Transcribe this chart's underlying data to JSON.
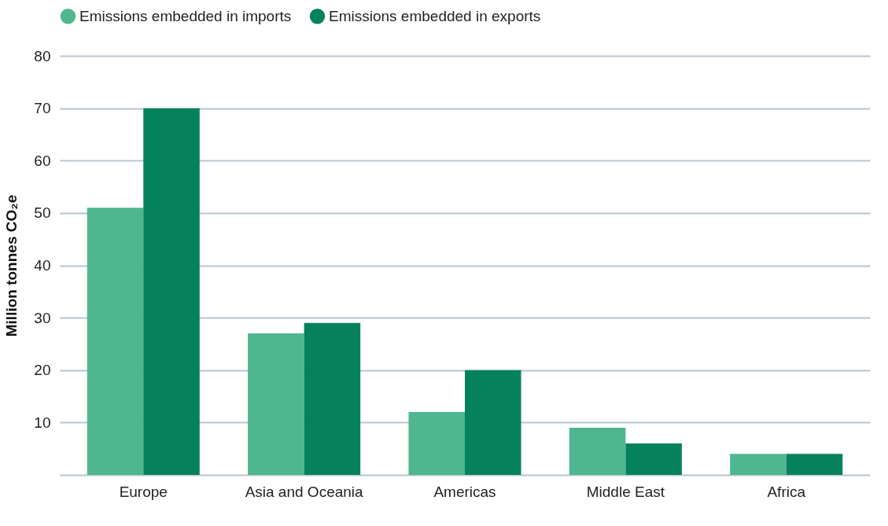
{
  "chart_data": {
    "type": "bar",
    "ylabel": "Million tonnes CO₂e",
    "categories": [
      "Europe",
      "Asia and Oceania",
      "Americas",
      "Middle East",
      "Africa"
    ],
    "series": [
      {
        "name": "Emissions embedded in imports",
        "color": "#4fb690",
        "values": [
          51,
          27,
          12,
          9,
          4
        ]
      },
      {
        "name": "Emissions embedded in exports",
        "color": "#05815b",
        "values": [
          70,
          29,
          20,
          6,
          4
        ]
      }
    ],
    "ylim": [
      0,
      80
    ],
    "yticks": [
      10,
      20,
      30,
      40,
      50,
      60,
      70,
      80
    ],
    "grid": "y",
    "legend": "top"
  }
}
